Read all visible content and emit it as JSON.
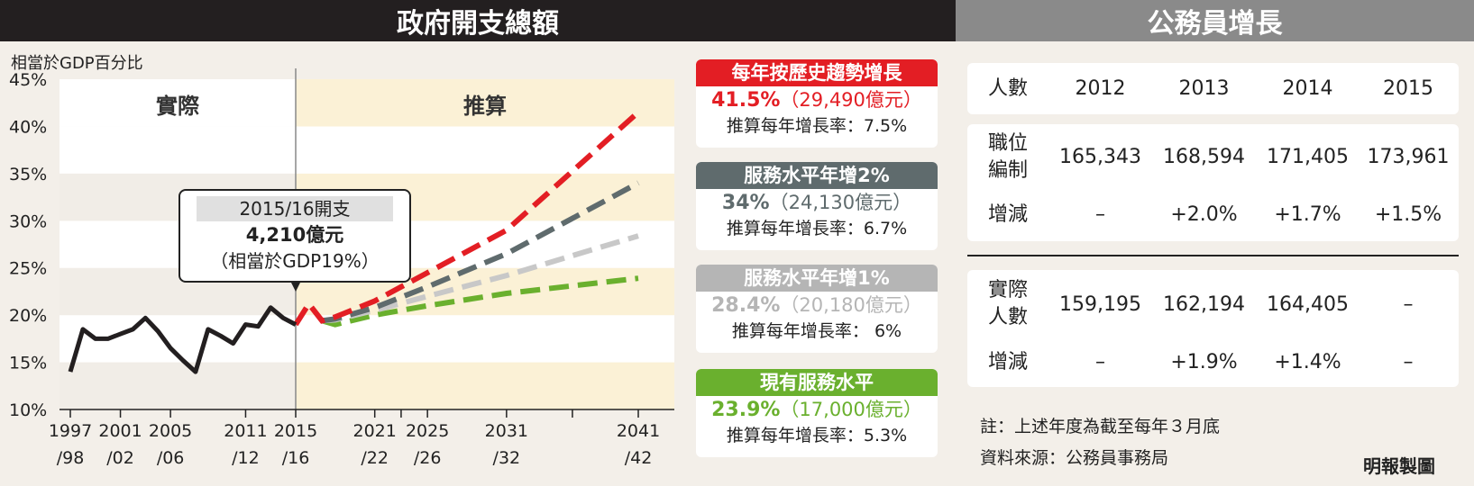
{
  "left_title": "政府開支總額",
  "right_title": "公務員增長",
  "chart_data": {
    "type": "line",
    "ylabel": "相當於GDP百分比",
    "ylim": [
      10,
      45
    ],
    "yticks": [
      "45%",
      "40%",
      "35%",
      "30%",
      "25%",
      "20%",
      "15%",
      "10%"
    ],
    "xticks": [
      {
        "year": 1997,
        "l1": "1997",
        "l2": "/98"
      },
      {
        "year": 2001,
        "l1": "2001",
        "l2": "/02"
      },
      {
        "year": 2005,
        "l1": "2005",
        "l2": "/06"
      },
      {
        "year": 2011,
        "l1": "2011",
        "l2": "/12"
      },
      {
        "year": 2015,
        "l1": "2015",
        "l2": "/16"
      },
      {
        "year": 2021,
        "l1": "2021",
        "l2": "/22"
      },
      {
        "year": 2025,
        "l1": "2025",
        "l2": "/26"
      },
      {
        "year": 2031,
        "l1": "2031",
        "l2": "/32"
      },
      {
        "year": 2041,
        "l1": "2041",
        "l2": "/42"
      }
    ],
    "region_labels": {
      "actual": "實際",
      "projection": "推算"
    },
    "actual": {
      "color": "#231f20",
      "x": [
        1997,
        1998,
        1999,
        2000,
        2001,
        2002,
        2003,
        2004,
        2005,
        2006,
        2007,
        2008,
        2009,
        2010,
        2011,
        2012,
        2013,
        2014,
        2015
      ],
      "y": [
        14,
        18.5,
        17.5,
        17.5,
        18,
        18.5,
        19.7,
        18.3,
        16.5,
        15.2,
        14,
        18.5,
        17.8,
        17,
        19,
        18.8,
        20.8,
        19.7,
        19
      ]
    },
    "series": [
      {
        "name": "每年按歷史趨勢增長",
        "color": "#e31e24",
        "x": [
          2015,
          2016,
          2017,
          2018,
          2021,
          2025,
          2031,
          2041
        ],
        "y": [
          19,
          21.2,
          19.4,
          19.8,
          21.5,
          24.5,
          29,
          41.5
        ]
      },
      {
        "name": "服務水平年增2%",
        "color": "#5f6b6d",
        "x": [
          2017,
          2018,
          2021,
          2025,
          2031,
          2041
        ],
        "y": [
          19.4,
          19.6,
          20.8,
          23,
          26.5,
          34
        ]
      },
      {
        "name": "服務水平年增1%",
        "color": "#c8c8c8",
        "x": [
          2017,
          2018,
          2021,
          2025,
          2031,
          2041
        ],
        "y": [
          19.4,
          19.5,
          20.5,
          22,
          24.2,
          28.4
        ]
      },
      {
        "name": "現有服務水平",
        "color": "#6ab02e",
        "x": [
          2017,
          2018,
          2021,
          2025,
          2031,
          2041
        ],
        "y": [
          19.4,
          19,
          20,
          21,
          22.3,
          23.9
        ]
      }
    ]
  },
  "callout": {
    "line1": "2015/16開支",
    "line2": "4,210億元",
    "line3": "（相當於GDP19%）"
  },
  "legend": [
    {
      "title": "每年按歷史趨勢增長",
      "pct": "41.5%",
      "amount": "（29,490億元）",
      "rate": "推算每年增長率：7.5%",
      "color": "#e31e24"
    },
    {
      "title": "服務水平年增2%",
      "pct": "34%",
      "amount": "（24,130億元）",
      "rate": "推算每年增長率：6.7%",
      "color": "#5f6b6d"
    },
    {
      "title": "服務水平年增1%",
      "pct": "28.4%",
      "amount": "（20,180億元）",
      "rate": "推算每年增長率： 6%",
      "color": "#b5b5b5"
    },
    {
      "title": "現有服務水平",
      "pct": "23.9%",
      "amount": "（17,000億元）",
      "rate": "推算每年增長率：5.3%",
      "color": "#6ab02e"
    }
  ],
  "table": {
    "headers": [
      "人數",
      "2012",
      "2013",
      "2014",
      "2015"
    ],
    "establishment": {
      "label1": "職位",
      "label2": "編制",
      "values": [
        "165,343",
        "168,594",
        "171,405",
        "173,961"
      ]
    },
    "est_change": {
      "label": "增減",
      "values": [
        "–",
        "+2.0%",
        "+1.7%",
        "+1.5%"
      ]
    },
    "actual": {
      "label1": "實際",
      "label2": "人數",
      "values": [
        "159,195",
        "162,194",
        "164,405",
        "–"
      ]
    },
    "act_change": {
      "label": "增減",
      "values": [
        "–",
        "+1.9%",
        "+1.4%",
        "–"
      ]
    }
  },
  "notes": {
    "note": "註：上述年度為截至每年３月底",
    "source": "資料來源：公務員事務局",
    "credit": "明報製圖"
  }
}
